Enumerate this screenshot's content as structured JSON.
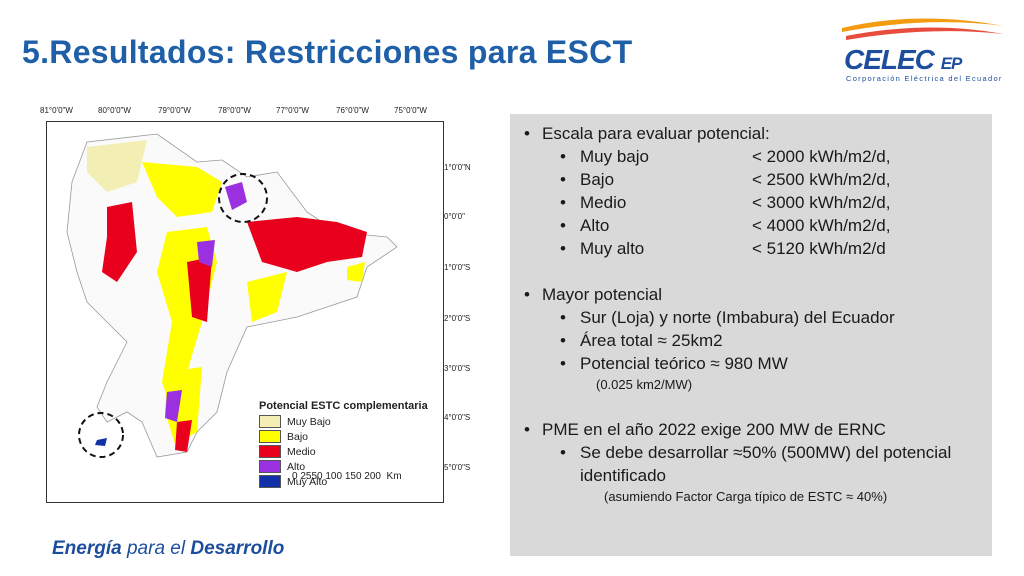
{
  "slide": {
    "title": "5.Resultados: Restricciones para ESCT",
    "footer": {
      "part1": "Energía",
      "part2": " para el ",
      "part3": "Desarrollo"
    }
  },
  "logo": {
    "name": "CELEC",
    "suffix": "EP",
    "subtitle": "Corporación Eléctrica del Ecuador"
  },
  "map": {
    "lon_ticks": [
      "81°0'0\"W",
      "80°0'0\"W",
      "79°0'0\"W",
      "78°0'0\"W",
      "77°0'0\"W",
      "76°0'0\"W",
      "75°0'0\"W"
    ],
    "lat_ticks": [
      "1°0'0\"N",
      "0°0'0\"",
      "1°0'0\"S",
      "2°0'0\"S",
      "3°0'0\"S",
      "4°0'0\"S",
      "5°0'0\"S"
    ],
    "legend": {
      "title": "Potencial ESTC complementaria",
      "items": [
        {
          "label": "Muy Bajo",
          "color": "#f2eeb4"
        },
        {
          "label": "Bajo",
          "color": "#ffff00"
        },
        {
          "label": "Medio",
          "color": "#e8001c"
        },
        {
          "label": "Alto",
          "color": "#9b30e0"
        },
        {
          "label": "Muy Alto",
          "color": "#1230a8"
        }
      ]
    },
    "scale_bar": {
      "ticks": "0 2550   100   150   200",
      "unit": "Km"
    }
  },
  "panel": {
    "escala_title": "Escala para evaluar potencial:",
    "levels": [
      {
        "name": "Muy bajo",
        "value": "< 2000 kWh/m2/d,"
      },
      {
        "name": "Bajo",
        "value": "< 2500 kWh/m2/d,"
      },
      {
        "name": "Medio",
        "value": "< 3000 kWh/m2/d,"
      },
      {
        "name": "Alto",
        "value": "< 4000 kWh/m2/d,"
      },
      {
        "name": "Muy alto",
        "value": "< 5120 kWh/m2/d"
      }
    ],
    "mayor_title": "Mayor potencial",
    "mayor_items": [
      "Sur (Loja) y norte (Imbabura) del Ecuador",
      "Área total ≈ 25km2",
      "Potencial teórico ≈ 980 MW"
    ],
    "mayor_note": "(0.025 km2/MW)",
    "pme_title": "PME en el año 2022 exige 200 MW de ERNC",
    "pme_item": "Se debe desarrollar ≈50% (500MW) del potencial identificado",
    "pme_note": "(asumiendo Factor Carga típico de ESTC ≈ 40%)"
  }
}
